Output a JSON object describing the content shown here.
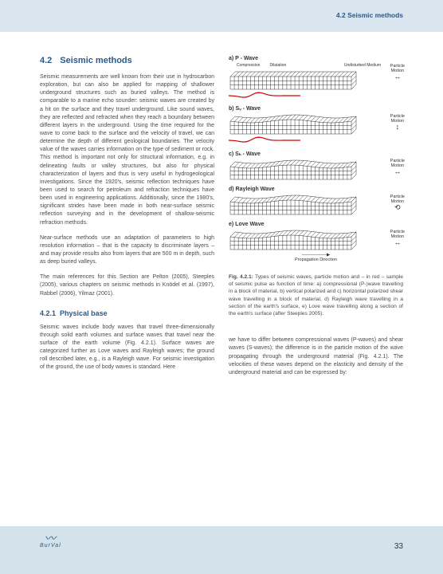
{
  "header": {
    "running_title": "4.2 Seismic methods"
  },
  "section": {
    "num": "4.2",
    "title": "Seismic methods",
    "p1": "Seismic measurements are well known from their use in hydrocarbon exploration, but can also be applied for mapping of shallower underground structures such as buried valleys. The method is comparable to a marine echo sounder: seismic waves are created by a hit on the surface and they travel underground. Like sound waves, they are reflected and refracted when they reach a boundary between different layers in the underground. Using the time required for the wave to come back to the surface and the velocity of travel, we can determine the depth of different geological boundaries. The velocity value of the waves carries information on the type of sediment or rock. This method is important not only for structural information, e.g. in delineating faults or valley structures, but also for physical characterization of layers and thus is very useful in hydrogeological investigations. Since the 1920's, seismic reflection techniques have been used to search for petroleum and refraction techniques have been used in engineering applications. Additionally, since the 1980's, significant strides have been made in both near-surface seismic reflection surveying and in the development of shallow-seismic refraction methods.",
    "p2": "Near-surface methods use an adaptation of parameters to high resolution information – that is the capacity to discriminate layers – and may provide results also from layers that are 500 m in depth, such as deep buried valleys.",
    "p3": "The main references for this Section are Pelton (2005), Steeples (2005), various chapters on seismic methods in Knödel et al. (1997), Rabbel (2006), Yilmaz (2001)."
  },
  "subsection": {
    "num": "4.2.1",
    "title": "Physical base",
    "p1": "Seismic waves include body waves that travel three-dimensionally through solid earth volumes and surface waves that travel near the surface of the earth volume (Fig. 4.2.1). Surface waves are categorized further as Love waves and Rayleigh waves; the ground roll described later, e.g., is a Rayleigh wave. For seismic investigation of the ground, the use of body waves is standard. Here",
    "p2": "we have to differ between compressional waves (P-waves) and shear waves (S-waves); the difference is in the particle motion of the wave propagating through the underground material (Fig. 4.2.1). The velocities of these waves depend on the elasticity and density of the underground material and can be expressed by:"
  },
  "figure": {
    "items": [
      {
        "label": "a) P - Wave",
        "sub_left": "Compression",
        "sub_right": "Dilatation",
        "sub_far": "Undisturbed Medium",
        "motion": "Particle Motion",
        "arrow": "↔",
        "red_wave": true,
        "type": "block"
      },
      {
        "label": "b) Sᵥ - Wave",
        "motion": "Particle Motion",
        "arrow": "↕",
        "red_wave": true,
        "type": "shear"
      },
      {
        "label": "c) Sₕ - Wave",
        "motion": "Particle Motion",
        "arrow": "↔",
        "red_wave": false,
        "type": "shear"
      },
      {
        "label": "d) Rayleigh Wave",
        "motion": "Particle Motion",
        "arrow": "⟲",
        "red_wave": false,
        "type": "rayleigh"
      },
      {
        "label": "e) Love Wave",
        "motion": "Particle Motion",
        "arrow": "↔",
        "red_wave": false,
        "type": "love",
        "prop_label": "Propagation Direction"
      }
    ],
    "caption_bold": "Fig. 4.2.1:",
    "caption": " Types of seismic waves, particle motion and – in red – sample of seismic pulse as function of time: a) compressional (P-)wave travelling in a block of material, b) vertical polarized and c) horizontal polarized shear wave travelling in a block of material, d) Rayleigh wave travelling in a section of the earth's surface, e) Love wave travelling along a section of the earth's surface (after Steeples 2005)."
  },
  "footer": {
    "logo_text": "BurVal",
    "page": "33"
  },
  "colors": {
    "header_bg": "#d9e6ef",
    "footer_bg": "#d4e2ec",
    "accent": "#2b5a8a",
    "wave_red": "#cc0000"
  }
}
